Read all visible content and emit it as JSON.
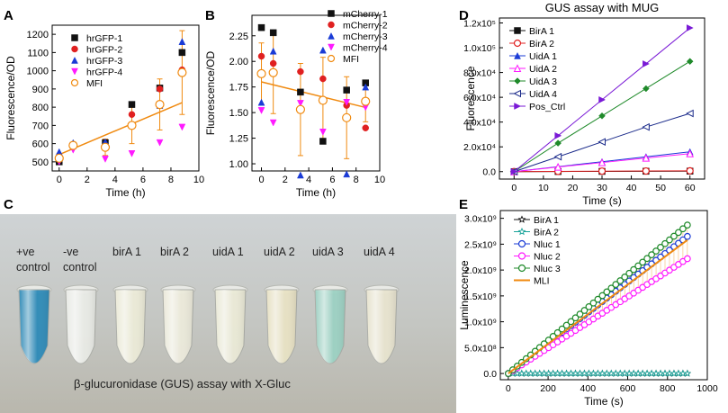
{
  "panels": {
    "A": {
      "label": "A"
    },
    "B": {
      "label": "B"
    },
    "C": {
      "label": "C",
      "tube_labels": [
        {
          "lines": [
            "+ve",
            "control"
          ]
        },
        {
          "lines": [
            "-ve",
            "control"
          ]
        },
        {
          "lines": [
            "birA 1"
          ]
        },
        {
          "lines": [
            "birA 2"
          ]
        },
        {
          "lines": [
            "uidA 1"
          ]
        },
        {
          "lines": [
            "uidA 2"
          ]
        },
        {
          "lines": [
            "uidA 3"
          ]
        },
        {
          "lines": [
            "uidA 4"
          ]
        }
      ],
      "tube_colors": [
        "#2c8ab8",
        "#e9ebe6",
        "#ecebd8",
        "#eceadb",
        "#ebead7",
        "#e8e2c4",
        "#9cd1c3",
        "#e8e4cf"
      ],
      "caption": "β-glucuronidase (GUS) assay with X-Gluc"
    },
    "D": {
      "label": "D"
    },
    "E": {
      "label": "E"
    }
  },
  "chart_data": [
    {
      "id": "A",
      "type": "scatter",
      "title": "",
      "xlabel": "Time (h)",
      "ylabel": "Fluorescence/OD",
      "xlim": [
        -0.5,
        10
      ],
      "ylim": [
        450,
        1250
      ],
      "xticks": [
        0,
        2,
        4,
        6,
        8,
        10
      ],
      "yticks": [
        500,
        600,
        700,
        800,
        900,
        1000,
        1100,
        1200
      ],
      "legend_position": "top-left",
      "series": [
        {
          "name": "hrGFP-1",
          "marker": "square",
          "color": "#111111",
          "x": [
            0,
            1,
            3.3,
            5.2,
            7.2,
            8.8
          ],
          "y": [
            500,
            590,
            605,
            815,
            905,
            1100
          ]
        },
        {
          "name": "hrGFP-2",
          "marker": "circle",
          "color": "#e02020",
          "x": [
            0,
            1,
            3.3,
            5.2,
            7.2,
            8.8
          ],
          "y": [
            525,
            585,
            580,
            760,
            900,
            1005
          ]
        },
        {
          "name": "hrGFP-3",
          "marker": "triangle-up",
          "color": "#1a3bd6",
          "x": [
            0,
            1,
            3.3,
            5.2,
            7.2,
            8.8
          ],
          "y": [
            555,
            605,
            610,
            705,
            810,
            1160
          ]
        },
        {
          "name": "hrGFP-4",
          "marker": "triangle-down",
          "color": "#ff1aff",
          "x": [
            0,
            1,
            3.3,
            5.2,
            7.2,
            8.8
          ],
          "y": [
            500,
            565,
            515,
            545,
            605,
            690
          ]
        },
        {
          "name": "MFI",
          "marker": "open-circle",
          "color": "#f08a10",
          "x": [
            0,
            1,
            3.3,
            5.2,
            7.2,
            8.8
          ],
          "y": [
            520,
            590,
            580,
            700,
            815,
            990
          ],
          "err": [
            25,
            15,
            45,
            100,
            140,
            230
          ]
        }
      ],
      "fit_line": {
        "color": "#f08a10",
        "x": [
          0,
          8.8
        ],
        "y": [
          540,
          825
        ]
      }
    },
    {
      "id": "B",
      "type": "scatter",
      "title": "",
      "xlabel": "Time (h)",
      "ylabel": "Fluorescence/OD",
      "xlim": [
        -0.8,
        10
      ],
      "ylim": [
        0.93,
        2.45
      ],
      "xticks": [
        0,
        2,
        4,
        6,
        8,
        10
      ],
      "yticks": [
        1.0,
        1.25,
        1.5,
        1.75,
        2.0,
        2.25
      ],
      "legend_position": "top-right",
      "series": [
        {
          "name": "mCherry-1",
          "marker": "square",
          "color": "#111111",
          "x": [
            0,
            1,
            3.3,
            5.2,
            7.2,
            8.8
          ],
          "y": [
            2.33,
            2.28,
            1.7,
            1.22,
            1.72,
            1.79
          ]
        },
        {
          "name": "mCherry-2",
          "marker": "circle",
          "color": "#e02020",
          "x": [
            0,
            1,
            3.3,
            5.2,
            7.2,
            8.8
          ],
          "y": [
            2.05,
            1.98,
            1.9,
            1.83,
            1.57,
            1.35
          ]
        },
        {
          "name": "mCherry-3",
          "marker": "triangle-up",
          "color": "#1a3bd6",
          "x": [
            0,
            1,
            3.3,
            5.2,
            7.2,
            8.8
          ],
          "y": [
            1.6,
            2.1,
            0.89,
            2.11,
            0.9,
            1.75
          ]
        },
        {
          "name": "mCherry-4",
          "marker": "triangle-down",
          "color": "#ff1aff",
          "x": [
            0,
            1,
            3.3,
            5.2,
            7.2,
            8.8
          ],
          "y": [
            1.52,
            1.4,
            1.59,
            1.31,
            1.6,
            1.55
          ]
        },
        {
          "name": "MFI",
          "marker": "open-circle",
          "color": "#f08a10",
          "x": [
            0,
            1,
            3.3,
            5.2,
            7.2,
            8.8
          ],
          "y": [
            1.88,
            1.89,
            1.53,
            1.62,
            1.45,
            1.61
          ],
          "err": [
            0.3,
            0.4,
            0.45,
            0.42,
            0.4,
            0.2
          ]
        }
      ],
      "fit_line": {
        "color": "#f08a10",
        "x": [
          0,
          8.8
        ],
        "y": [
          1.8,
          1.55
        ]
      }
    },
    {
      "id": "D",
      "type": "line",
      "title": "GUS assay with MUG",
      "xlabel": "Time (s)",
      "ylabel": "Fluorescence",
      "xlim": [
        -5,
        65
      ],
      "ylim": [
        -6000,
        124000
      ],
      "xticks": [
        0,
        10,
        20,
        30,
        40,
        50,
        60
      ],
      "yticks": [
        0,
        20000,
        40000,
        60000,
        80000,
        100000,
        120000
      ],
      "ytick_labels": [
        "0.0",
        "2.0x10⁴",
        "4.0x10⁴",
        "6.0x10⁴",
        "8.0x10⁴",
        "1.0x10⁵",
        "1.2x10⁵"
      ],
      "legend_position": "top-left",
      "x": [
        0,
        15,
        30,
        45,
        60
      ],
      "series": [
        {
          "name": "BirA 1",
          "marker": "square",
          "color": "#111111",
          "values": [
            0,
            100,
            200,
            300,
            400
          ]
        },
        {
          "name": "BirA 2",
          "marker": "open-circle",
          "color": "#e02020",
          "values": [
            0,
            200,
            400,
            500,
            600
          ]
        },
        {
          "name": "UidA 1",
          "marker": "triangle-up",
          "color": "#1a3bd6",
          "values": [
            0,
            4000,
            8000,
            12000,
            16000
          ]
        },
        {
          "name": "UidA 2",
          "marker": "open-triangle-up",
          "color": "#ff1aff",
          "values": [
            0,
            3700,
            7300,
            11000,
            14500
          ]
        },
        {
          "name": "UidA 3",
          "marker": "diamond",
          "color": "#1f8a2a",
          "values": [
            0,
            23000,
            45000,
            67000,
            89000
          ]
        },
        {
          "name": "UidA 4",
          "marker": "open-triangle-left",
          "color": "#1a2a8a",
          "values": [
            0,
            12000,
            24000,
            36000,
            47000
          ]
        },
        {
          "name": "Pos_Ctrl",
          "marker": "triangle-right",
          "color": "#7a1ad6",
          "values": [
            0,
            29000,
            58000,
            87000,
            116000
          ]
        }
      ]
    },
    {
      "id": "E",
      "type": "line",
      "title": "",
      "xlabel": "Time (s)",
      "ylabel": "Luminescence",
      "xlim": [
        -40,
        1000
      ],
      "ylim": [
        -120000000.0,
        3150000000.0
      ],
      "xticks": [
        0,
        200,
        400,
        600,
        800,
        1000
      ],
      "yticks": [
        0,
        500000000.0,
        1000000000.0,
        1500000000.0,
        2000000000.0,
        2500000000.0,
        3000000000.0
      ],
      "ytick_labels": [
        "0.0",
        "5.0x10⁸",
        "1.0x10⁹",
        "1.5x10⁹",
        "2.0x10⁹",
        "2.5x10⁹",
        "3.0x10⁹"
      ],
      "legend_position": "top-left",
      "x_start": 0,
      "x_step": 22.5,
      "n_points": 41,
      "series": [
        {
          "name": "BirA 1",
          "marker": "open-star",
          "color": "#111111",
          "start": 0,
          "end": 0
        },
        {
          "name": "BirA 2",
          "marker": "open-star",
          "color": "#1aa39a",
          "start": 0,
          "end": 0
        },
        {
          "name": "Nluc 1",
          "marker": "open-circle",
          "color": "#1a3bd6",
          "start": 0,
          "end": 2650000000.0
        },
        {
          "name": "Nluc 2",
          "marker": "open-circle",
          "color": "#ff1aff",
          "start": 0,
          "end": 2220000000.0
        },
        {
          "name": "Nluc 3",
          "marker": "open-circle",
          "color": "#1f8a2a",
          "start": 0,
          "end": 2870000000.0
        },
        {
          "name": "MLI",
          "marker": "line",
          "color": "#f08a10",
          "start": 0,
          "end": 2580000000.0
        }
      ]
    }
  ]
}
